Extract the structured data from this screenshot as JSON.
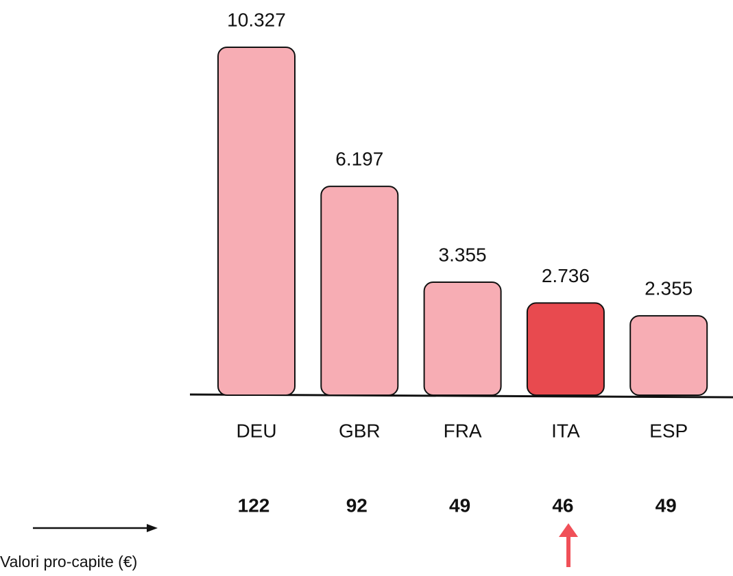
{
  "chart_data": {
    "type": "bar",
    "categories": [
      "DEU",
      "GBR",
      "FRA",
      "ITA",
      "ESP"
    ],
    "values": [
      10327,
      6197,
      3355,
      2736,
      2355
    ],
    "value_labels": [
      "10.327",
      "6.197",
      "3.355",
      "2.736",
      "2.355"
    ],
    "colors": [
      "#f7adb4",
      "#f7adb4",
      "#f7adb4",
      "#e84a4f",
      "#f7adb4"
    ],
    "per_capita": [
      "122",
      "92",
      "49",
      "46",
      "49"
    ],
    "per_capita_label": "Valori pro-capite (€)"
  }
}
